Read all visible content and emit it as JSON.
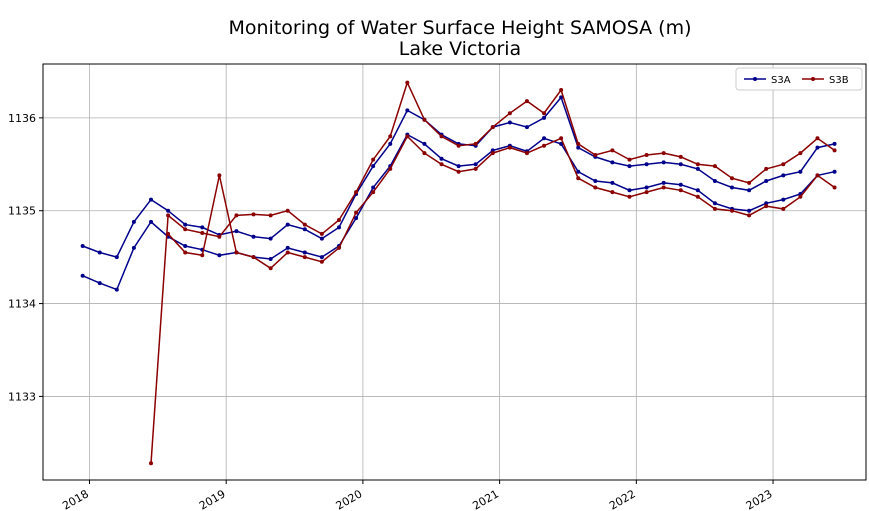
{
  "chart_data": {
    "type": "line",
    "title": "Monitoring of Water Surface Height SAMOSA (m)",
    "subtitle": "Lake Victoria",
    "x": [
      2017.95,
      2018.075,
      2018.2,
      2018.325,
      2018.45,
      2018.575,
      2018.7,
      2018.825,
      2018.95,
      2019.075,
      2019.2,
      2019.325,
      2019.45,
      2019.575,
      2019.7,
      2019.825,
      2019.95,
      2020.075,
      2020.2,
      2020.325,
      2020.45,
      2020.575,
      2020.7,
      2020.825,
      2020.95,
      2021.075,
      2021.2,
      2021.325,
      2021.45,
      2021.575,
      2021.7,
      2021.825,
      2021.95,
      2022.075,
      2022.2,
      2022.325,
      2022.45,
      2022.575,
      2022.7,
      2022.825,
      2022.95,
      2023.075,
      2023.2,
      2023.325,
      2023.45
    ],
    "series": [
      {
        "name": "S3A",
        "color": "#00008b",
        "values": [
          1134.62,
          1134.55,
          1134.5,
          1134.88,
          1135.12,
          1135.0,
          1134.85,
          1134.82,
          1134.74,
          1134.78,
          1134.72,
          1134.7,
          1134.85,
          1134.8,
          1134.7,
          1134.82,
          1135.18,
          1135.48,
          1135.72,
          1136.08,
          1135.98,
          1135.82,
          1135.72,
          1135.7,
          1135.9,
          1135.95,
          1135.9,
          1136.0,
          1136.22,
          1135.68,
          1135.58,
          1135.52,
          1135.48,
          1135.5,
          1135.52,
          1135.5,
          1135.45,
          1135.32,
          1135.25,
          1135.22,
          1135.32,
          1135.38,
          1135.42,
          1135.68,
          1135.72
        ]
      },
      {
        "color": "#00008b",
        "values": [
          1134.3,
          1134.22,
          1134.15,
          1134.6,
          1134.88,
          1134.72,
          1134.62,
          1134.58,
          1134.52,
          1134.55,
          1134.5,
          1134.48,
          1134.6,
          1134.55,
          1134.5,
          1134.62,
          1134.92,
          1135.25,
          1135.48,
          1135.82,
          1135.72,
          1135.56,
          1135.48,
          1135.5,
          1135.65,
          1135.7,
          1135.64,
          1135.78,
          1135.72,
          1135.42,
          1135.32,
          1135.3,
          1135.22,
          1135.25,
          1135.3,
          1135.28,
          1135.22,
          1135.08,
          1135.02,
          1135.0,
          1135.08,
          1135.12,
          1135.18,
          1135.38,
          1135.42
        ]
      },
      {
        "name": "S3B",
        "color": "#8b0000",
        "values": [
          null,
          null,
          null,
          null,
          1132.28,
          1134.95,
          1134.8,
          1134.76,
          1134.72,
          1134.95,
          1134.96,
          1134.95,
          1135.0,
          1134.85,
          1134.75,
          1134.9,
          1135.2,
          1135.55,
          1135.8,
          1136.38,
          1135.98,
          1135.8,
          1135.7,
          1135.72,
          1135.9,
          1136.05,
          1136.18,
          1136.05,
          1136.3,
          1135.72,
          1135.6,
          1135.65,
          1135.55,
          1135.6,
          1135.62,
          1135.58,
          1135.5,
          1135.48,
          1135.35,
          1135.3,
          1135.45,
          1135.5,
          1135.62,
          1135.78,
          1135.65
        ]
      },
      {
        "color": "#8b0000",
        "values": [
          null,
          null,
          null,
          null,
          null,
          1134.75,
          1134.55,
          1134.52,
          1135.38,
          1134.55,
          1134.5,
          1134.38,
          1134.55,
          1134.5,
          1134.45,
          1134.6,
          1134.98,
          1135.2,
          1135.45,
          1135.8,
          1135.62,
          1135.5,
          1135.42,
          1135.45,
          1135.62,
          1135.68,
          1135.62,
          1135.7,
          1135.78,
          1135.35,
          1135.25,
          1135.2,
          1135.15,
          1135.2,
          1135.25,
          1135.22,
          1135.15,
          1135.02,
          1135.0,
          1134.95,
          1135.05,
          1135.02,
          1135.15,
          1135.38,
          1135.25
        ]
      }
    ],
    "xlim": [
      2017.66,
      2023.68
    ],
    "xticks": [
      2018,
      2019,
      2020,
      2021,
      2022,
      2023
    ],
    "ylim": [
      1132.1,
      1136.58
    ],
    "yticks": [
      1133,
      1134,
      1135,
      1136
    ],
    "grid": true,
    "legend": "upper right"
  }
}
